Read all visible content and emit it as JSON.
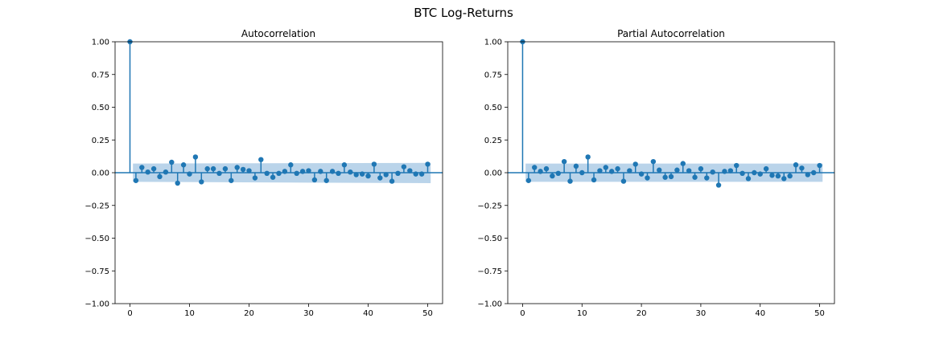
{
  "figure": {
    "title": "BTC Log-Returns"
  },
  "chart_data": [
    {
      "type": "stem",
      "title": "Autocorrelation",
      "xlim": [
        -2.5,
        52.5
      ],
      "ylim": [
        -1.0,
        1.0
      ],
      "xticks": [
        "0",
        "10",
        "20",
        "30",
        "40",
        "50"
      ],
      "yticks": [
        "1.00",
        "0.75",
        "0.50",
        "0.25",
        "0.00",
        "−0.25",
        "−0.50",
        "−0.75",
        "−1.00"
      ],
      "confidence_band": {
        "upper_start": 0.07,
        "upper_end": 0.075,
        "lower_start": -0.07,
        "lower_end": -0.08
      },
      "color": "#1f77b4",
      "band_color": "#aecde6",
      "lags": [
        0,
        1,
        2,
        3,
        4,
        5,
        6,
        7,
        8,
        9,
        10,
        11,
        12,
        13,
        14,
        15,
        16,
        17,
        18,
        19,
        20,
        21,
        22,
        23,
        24,
        25,
        26,
        27,
        28,
        29,
        30,
        31,
        32,
        33,
        34,
        35,
        36,
        37,
        38,
        39,
        40,
        41,
        42,
        43,
        44,
        45,
        46,
        47,
        48,
        49,
        50
      ],
      "values": [
        1.0,
        -0.06,
        0.04,
        0.005,
        0.03,
        -0.03,
        0.005,
        0.08,
        -0.08,
        0.06,
        -0.01,
        0.12,
        -0.07,
        0.03,
        0.03,
        -0.005,
        0.03,
        -0.06,
        0.04,
        0.025,
        0.015,
        -0.04,
        0.1,
        -0.005,
        -0.035,
        -0.005,
        0.01,
        0.06,
        -0.005,
        0.01,
        0.015,
        -0.055,
        0.01,
        -0.06,
        0.01,
        -0.005,
        0.06,
        0.005,
        -0.015,
        -0.01,
        -0.025,
        0.065,
        -0.04,
        -0.015,
        -0.065,
        -0.005,
        0.045,
        0.015,
        -0.01,
        -0.01,
        0.065
      ]
    },
    {
      "type": "stem",
      "title": "Partial Autocorrelation",
      "xlim": [
        -2.5,
        52.5
      ],
      "ylim": [
        -1.0,
        1.0
      ],
      "xticks": [
        "0",
        "10",
        "20",
        "30",
        "40",
        "50"
      ],
      "yticks": [
        "1.00",
        "0.75",
        "0.50",
        "0.25",
        "0.00",
        "−0.25",
        "−0.50",
        "−0.75",
        "−1.00"
      ],
      "confidence_band": {
        "upper_start": 0.07,
        "upper_end": 0.07,
        "lower_start": -0.07,
        "lower_end": -0.07
      },
      "color": "#1f77b4",
      "band_color": "#aecde6",
      "lags": [
        0,
        1,
        2,
        3,
        4,
        5,
        6,
        7,
        8,
        9,
        10,
        11,
        12,
        13,
        14,
        15,
        16,
        17,
        18,
        19,
        20,
        21,
        22,
        23,
        24,
        25,
        26,
        27,
        28,
        29,
        30,
        31,
        32,
        33,
        34,
        35,
        36,
        37,
        38,
        39,
        40,
        41,
        42,
        43,
        44,
        45,
        46,
        47,
        48,
        49,
        50
      ],
      "values": [
        1.0,
        -0.06,
        0.04,
        0.01,
        0.03,
        -0.025,
        -0.005,
        0.085,
        -0.065,
        0.05,
        0.0,
        0.12,
        -0.055,
        0.015,
        0.04,
        0.01,
        0.03,
        -0.065,
        0.015,
        0.065,
        -0.01,
        -0.04,
        0.085,
        0.02,
        -0.035,
        -0.03,
        0.02,
        0.07,
        0.015,
        -0.035,
        0.03,
        -0.04,
        0.005,
        -0.095,
        0.01,
        0.015,
        0.055,
        -0.005,
        -0.045,
        0.0,
        -0.01,
        0.03,
        -0.02,
        -0.025,
        -0.045,
        -0.025,
        0.06,
        0.035,
        -0.015,
        0.0,
        0.055
      ]
    }
  ]
}
